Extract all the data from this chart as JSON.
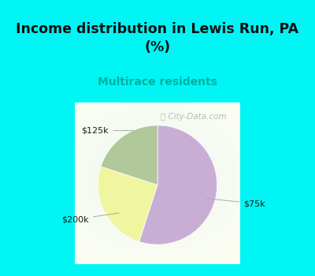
{
  "title": "Income distribution in Lewis Run, PA\n(%)",
  "subtitle": "Multirace residents",
  "slices": [
    {
      "label": "$75k",
      "value": 55,
      "color": "#c8aed4"
    },
    {
      "label": "$125k",
      "value": 25,
      "color": "#f0f5a0"
    },
    {
      "label": "$200k",
      "value": 20,
      "color": "#b0c89a"
    }
  ],
  "label_color": "#1a1a1a",
  "title_color": "#111111",
  "subtitle_color": "#00b0a0",
  "bg_cyan": "#00f5f5",
  "startangle": 90,
  "watermark": "City-Data.com"
}
